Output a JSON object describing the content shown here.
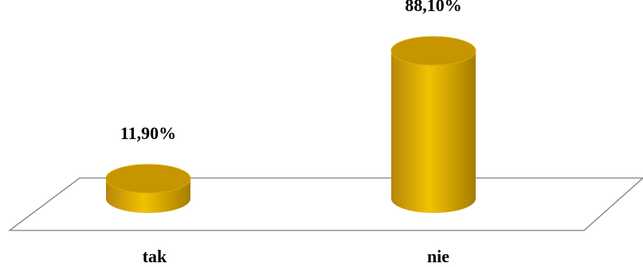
{
  "chart_data": {
    "type": "bar",
    "categories": [
      "tak",
      "nie"
    ],
    "values": [
      11.9,
      88.1
    ],
    "data_labels": [
      "11,90%",
      "88,10%"
    ],
    "ylim": [
      0,
      100
    ],
    "grid": false,
    "legend": "none",
    "bar_shape": "cylinder",
    "colors": {
      "bar_front_dark": "#b8860b",
      "bar_front_light": "#f2c200",
      "bar_top": "#c69500",
      "floor_stroke": "#7f7f7f"
    }
  }
}
